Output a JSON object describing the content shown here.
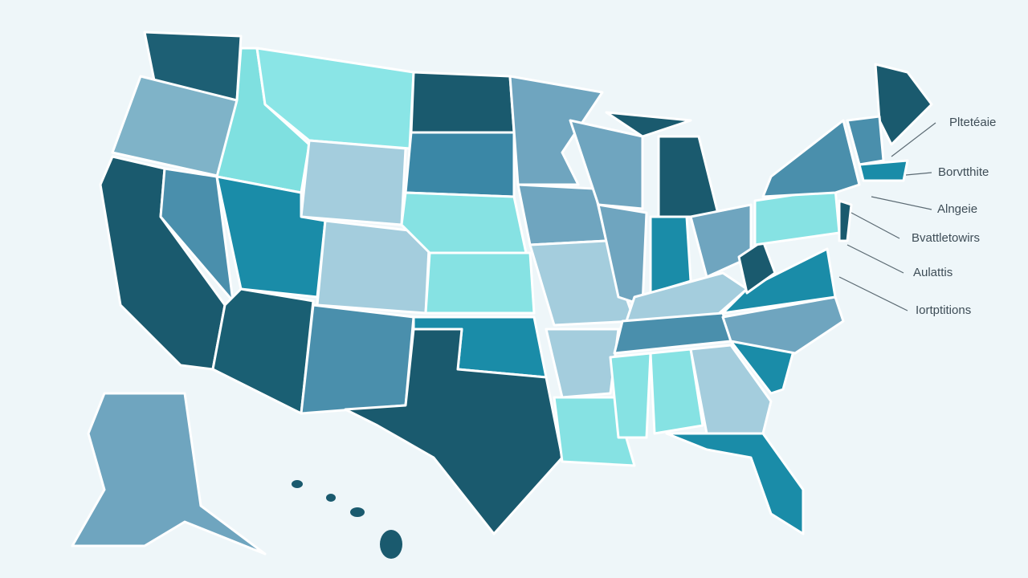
{
  "labels": [
    "Pltetéaie",
    "Borvtthite",
    "Alngeie",
    "Bvattletowirs",
    "Aulattis",
    "Iortptitions"
  ]
}
